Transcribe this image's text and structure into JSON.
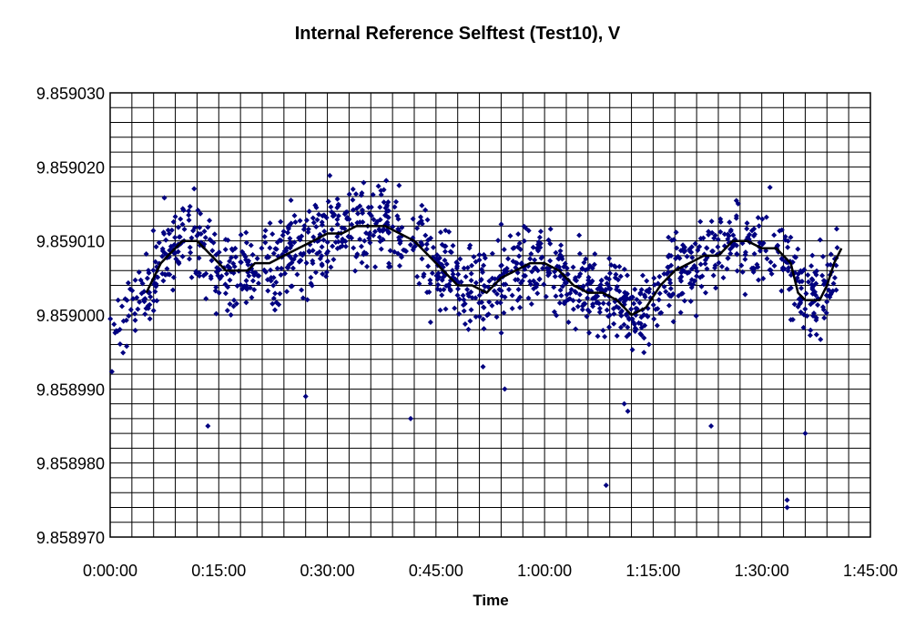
{
  "chart_data": {
    "type": "scatter",
    "title": "Internal Reference Selftest (Test10), V",
    "xlabel": "Time",
    "ylabel": "",
    "x_unit": "minutes",
    "xlim": [
      0,
      105
    ],
    "ylim": [
      9.85897,
      9.85903
    ],
    "x_tick_labels": [
      "0:00:00",
      "0:15:00",
      "0:30:00",
      "0:45:00",
      "1:00:00",
      "1:15:00",
      "1:30:00",
      "1:45:00"
    ],
    "y_tick_labels": [
      "9.858970",
      "9.858980",
      "9.858990",
      "9.859000",
      "9.859010",
      "9.859020",
      "9.859030"
    ],
    "grid": true,
    "legend": "none",
    "colors": {
      "points": "#000080",
      "trend": "#000000",
      "grid": "#000000"
    },
    "trend": {
      "x": [
        5,
        6,
        7,
        8,
        9,
        10,
        11,
        12,
        13,
        14,
        15,
        16,
        17,
        18,
        19,
        20,
        22,
        24,
        26,
        28,
        30,
        32,
        34,
        36,
        38,
        40,
        42,
        44,
        46,
        48,
        50,
        52,
        54,
        56,
        58,
        60,
        62,
        64,
        66,
        68,
        70,
        71,
        72,
        74,
        76,
        78,
        80,
        82,
        84,
        86,
        88,
        90,
        92,
        94,
        95,
        96,
        97,
        98,
        99,
        100,
        101
      ],
      "y": [
        9.859003,
        9.859005,
        9.859007,
        9.859008,
        9.859009,
        9.85901,
        9.85901,
        9.85901,
        9.859009,
        9.859008,
        9.859007,
        9.859006,
        9.859006,
        9.859006,
        9.859006,
        9.859007,
        9.859007,
        9.859008,
        9.859009,
        9.85901,
        9.859011,
        9.859011,
        9.859012,
        9.859012,
        9.859012,
        9.859011,
        9.85901,
        9.859008,
        9.859006,
        9.859004,
        9.859004,
        9.859003,
        9.859005,
        9.859006,
        9.859007,
        9.859007,
        9.859006,
        9.859004,
        9.859003,
        9.859003,
        9.859002,
        9.859001,
        9.859,
        9.859001,
        9.859004,
        9.859006,
        9.859007,
        9.859008,
        9.859008,
        9.85901,
        9.85901,
        9.859009,
        9.859009,
        9.859007,
        9.859003,
        9.859002,
        9.859002,
        9.859002,
        9.859004,
        9.859007,
        9.859009
      ]
    },
    "outliers": {
      "x": [
        13.5,
        27,
        41.5,
        51.5,
        54.5,
        68.5,
        71,
        71.5,
        83,
        93.5,
        93.5,
        96
      ],
      "y": [
        9.858985,
        9.858989,
        9.858986,
        9.858993,
        9.85899,
        9.858977,
        9.858988,
        9.858987,
        9.858985,
        9.858975,
        9.858974,
        9.858984
      ]
    },
    "point_count": 1300
  }
}
